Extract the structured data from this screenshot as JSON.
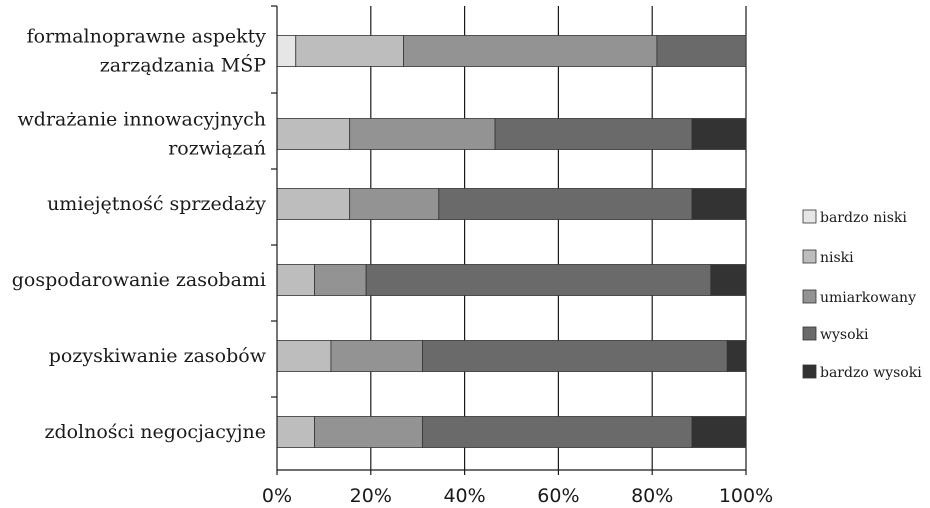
{
  "chart_data": {
    "type": "bar",
    "orientation": "horizontal",
    "stacked": "percent",
    "categories": [
      [
        "formalnoprawne aspekty",
        "zarządzania MŚP"
      ],
      [
        "wdrażanie innowacyjnych",
        "rozwiązań"
      ],
      [
        "umiejętność sprzedaży"
      ],
      [
        "gospodarowanie zasobami"
      ],
      [
        "pozyskiwanie zasobów"
      ],
      [
        "zdolności negocjacyjne"
      ]
    ],
    "series": [
      {
        "name": "bardzo niski",
        "color": "#e6e6e6",
        "values": [
          4,
          0,
          0,
          0,
          0,
          0
        ]
      },
      {
        "name": "niski",
        "color": "#bdbdbd",
        "values": [
          23,
          15.5,
          15.5,
          8,
          11.5,
          8
        ]
      },
      {
        "name": "umiarkowany",
        "color": "#939393",
        "values": [
          54,
          31,
          19,
          11,
          19.5,
          23
        ]
      },
      {
        "name": "wysoki",
        "color": "#6a6a6a",
        "values": [
          19,
          42,
          54,
          73.5,
          65,
          57.5
        ]
      },
      {
        "name": "bardzo wysoki",
        "color": "#333333",
        "values": [
          0,
          11.5,
          11.5,
          7.5,
          4,
          11.5
        ]
      }
    ],
    "xlim": [
      0,
      100
    ],
    "xticks": [
      "0%",
      "20%",
      "40%",
      "60%",
      "80%",
      "100%"
    ],
    "grid": "vertical",
    "legend": "right",
    "title": "",
    "xlabel": "",
    "ylabel": ""
  }
}
